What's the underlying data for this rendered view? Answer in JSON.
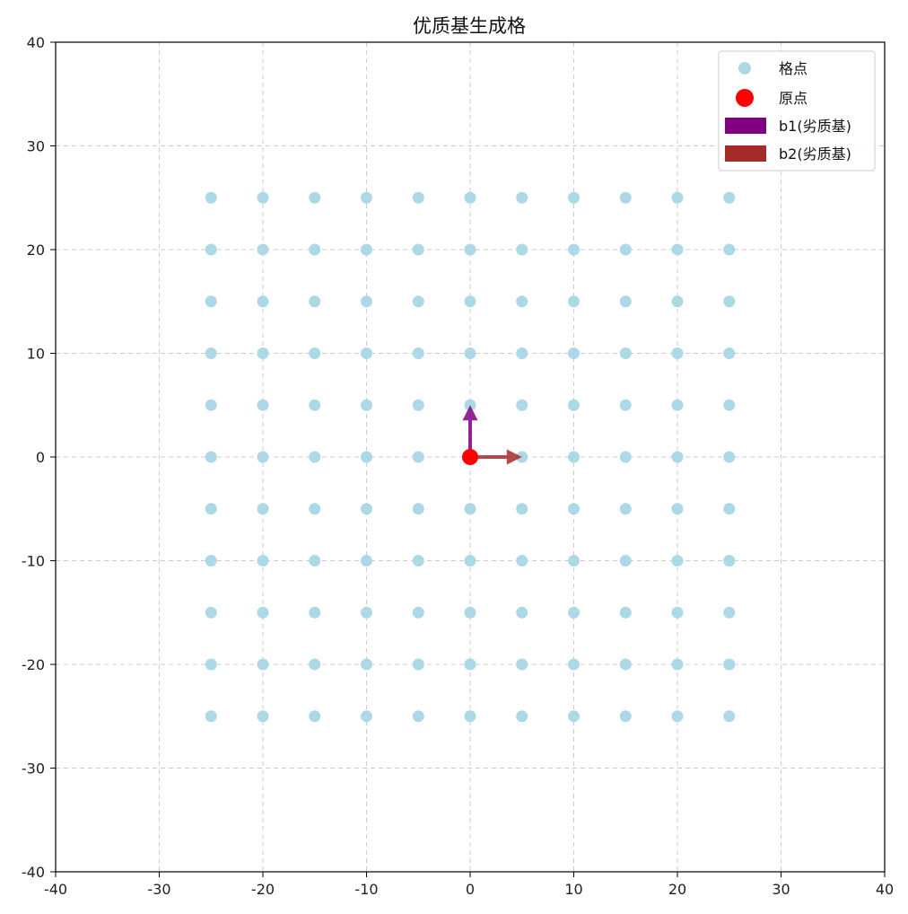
{
  "chart_data": {
    "type": "scatter",
    "title": "优质基生成格",
    "xlabel": "",
    "ylabel": "",
    "xlim": [
      -40,
      40
    ],
    "ylim": [
      -40,
      40
    ],
    "xticks": [
      -40,
      -30,
      -20,
      -10,
      0,
      10,
      20,
      30,
      40
    ],
    "yticks": [
      -40,
      -30,
      -20,
      -10,
      0,
      10,
      20,
      30,
      40
    ],
    "grid": true,
    "legend_position": "top-right",
    "lattice": {
      "name": "格点",
      "color": "#add8e6",
      "x_values": [
        -25,
        -20,
        -15,
        -10,
        -5,
        0,
        5,
        10,
        15,
        20,
        25
      ],
      "y_values": [
        -25,
        -20,
        -15,
        -10,
        -5,
        0,
        5,
        10,
        15,
        20,
        25
      ]
    },
    "origin": {
      "name": "原点",
      "x": 0,
      "y": 0,
      "color": "#ff0000"
    },
    "vectors": [
      {
        "name": "b1(劣质基)",
        "x0": 0,
        "y0": 0,
        "dx": 0,
        "dy": 5,
        "color": "#800080"
      },
      {
        "name": "b2(劣质基)",
        "x0": 0,
        "y0": 0,
        "dx": 5,
        "dy": 0,
        "color": "#a52a2a"
      }
    ]
  }
}
